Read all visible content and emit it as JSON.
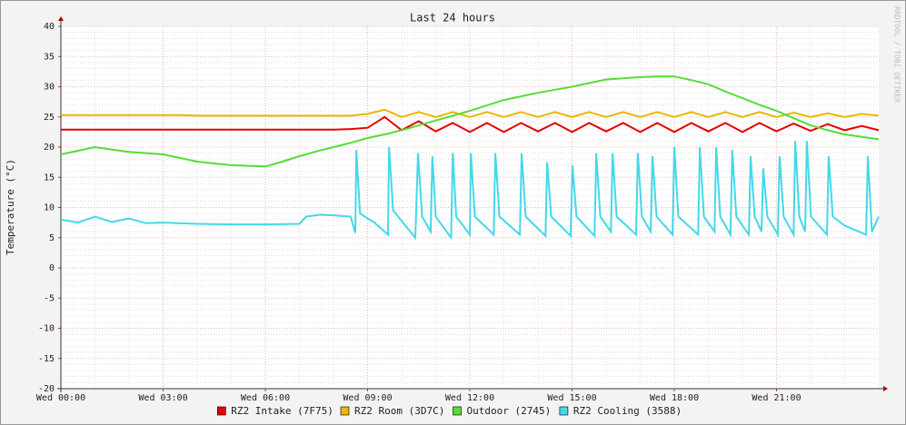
{
  "chart_data": {
    "type": "line",
    "title": "Last 24 hours",
    "ylabel": "Temperature (°C)",
    "watermark": "RRDTOOL / TOBI OETIKER",
    "xlim": [
      0,
      24
    ],
    "xticks": [
      {
        "value": 0,
        "label": "Wed 00:00"
      },
      {
        "value": 3,
        "label": "Wed 03:00"
      },
      {
        "value": 6,
        "label": "Wed 06:00"
      },
      {
        "value": 9,
        "label": "Wed 09:00"
      },
      {
        "value": 12,
        "label": "Wed 12:00"
      },
      {
        "value": 15,
        "label": "Wed 15:00"
      },
      {
        "value": 18,
        "label": "Wed 18:00"
      },
      {
        "value": 21,
        "label": "Wed 21:00"
      }
    ],
    "ylim": [
      -20,
      40
    ],
    "yticks": [
      -20,
      -15,
      -10,
      -5,
      0,
      5,
      10,
      15,
      20,
      25,
      30,
      35,
      40
    ],
    "grid": true,
    "x": [
      0,
      0.5,
      1,
      1.5,
      2,
      2.5,
      3,
      3.5,
      4,
      4.5,
      5,
      5.5,
      6,
      6.5,
      7,
      7.5,
      8,
      8.5,
      9,
      9.5,
      10,
      10.5,
      11,
      11.5,
      12,
      12.5,
      13,
      13.5,
      14,
      14.5,
      15,
      15.5,
      16,
      16.5,
      17,
      17.5,
      18,
      18.5,
      19,
      19.5,
      20,
      20.5,
      21,
      21.5,
      22,
      22.5,
      23,
      23.5,
      24
    ],
    "series": [
      {
        "name": "RZ2 Intake (7F75)",
        "color": "#e60000",
        "values": [
          22.9,
          22.9,
          22.9,
          22.9,
          22.9,
          22.9,
          22.9,
          22.9,
          22.9,
          22.9,
          22.9,
          22.9,
          22.9,
          22.9,
          22.9,
          22.9,
          22.9,
          23,
          23.2,
          25,
          22.8,
          24.3,
          22.6,
          24,
          22.5,
          24,
          22.5,
          24,
          22.6,
          24,
          22.5,
          24,
          22.6,
          24,
          22.5,
          24,
          22.5,
          24,
          22.6,
          24,
          22.5,
          24,
          22.6,
          23.9,
          22.7,
          23.8,
          22.8,
          23.5,
          22.8
        ]
      },
      {
        "name": "RZ2 Room (3D7C)",
        "color": "#e6b800",
        "values": [
          25.3,
          25.3,
          25.3,
          25.3,
          25.3,
          25.3,
          25.3,
          25.3,
          25.2,
          25.2,
          25.2,
          25.2,
          25.2,
          25.2,
          25.2,
          25.2,
          25.2,
          25.2,
          25.5,
          26.2,
          25,
          25.8,
          25,
          25.8,
          25,
          25.8,
          25,
          25.8,
          25,
          25.8,
          25,
          25.8,
          25,
          25.8,
          25,
          25.8,
          25,
          25.8,
          25,
          25.8,
          25,
          25.8,
          25,
          25.7,
          25,
          25.6,
          25,
          25.5,
          25.2
        ]
      },
      {
        "name": "Outdoor (2745)",
        "color": "#55dd33",
        "values": [
          18.8,
          19.4,
          20,
          19.6,
          19.2,
          19,
          18.8,
          18.2,
          17.6,
          17.3,
          17,
          16.9,
          16.8,
          17.6,
          18.5,
          19.3,
          20,
          20.7,
          21.5,
          22.1,
          22.8,
          23.6,
          24.4,
          25.2,
          26,
          26.9,
          27.8,
          28.4,
          29,
          29.5,
          30,
          30.6,
          31.2,
          31.4,
          31.6,
          31.7,
          31.7,
          31.1,
          30.4,
          29.2,
          28.1,
          27,
          26,
          24.8,
          23.6,
          22.8,
          22.1,
          21.7,
          21.3
        ]
      },
      {
        "name": "RZ2 Cooling (3588)",
        "color": "#44d8e8",
        "x": [
          0,
          0.5,
          1,
          1.5,
          2,
          2.5,
          3,
          4,
          5,
          6,
          7,
          7.2,
          7.6,
          8,
          8.5,
          8.64,
          8.67,
          8.78,
          9.2,
          9.6,
          9.63,
          9.75,
          10.4,
          10.48,
          10.6,
          10.85,
          10.9,
          11,
          11.45,
          11.5,
          11.6,
          12,
          12.03,
          12.15,
          12.7,
          12.75,
          12.87,
          13.47,
          13.52,
          13.64,
          14.22,
          14.27,
          14.39,
          14.96,
          15.01,
          15.13,
          15.66,
          15.71,
          15.83,
          16.14,
          16.19,
          16.31,
          16.88,
          16.93,
          17.05,
          17.31,
          17.36,
          17.48,
          17.95,
          18,
          18.12,
          18.7,
          18.75,
          18.87,
          19.18,
          19.23,
          19.35,
          19.65,
          19.7,
          19.82,
          20.19,
          20.24,
          20.36,
          20.56,
          20.61,
          20.73,
          21.04,
          21.09,
          21.21,
          21.5,
          21.55,
          21.67,
          21.84,
          21.89,
          22.01,
          22.48,
          22.53,
          22.65,
          23,
          23.63,
          23.68,
          23.8,
          24
        ],
        "values": [
          8,
          7.5,
          8.5,
          7.6,
          8.2,
          7.4,
          7.5,
          7.3,
          7.2,
          7.2,
          7.3,
          8.5,
          8.8,
          8.7,
          8.5,
          5.8,
          19.5,
          9,
          7.5,
          5.5,
          20,
          9.5,
          5,
          19,
          8.5,
          6,
          18.5,
          8.5,
          5,
          19,
          8.5,
          5.5,
          19,
          8.5,
          5.5,
          19,
          8.5,
          5.5,
          19,
          8.5,
          5.3,
          17.5,
          8.5,
          5.3,
          17,
          8.5,
          5.3,
          19,
          8.5,
          6,
          19,
          8.5,
          5.5,
          19,
          8.5,
          6,
          18.5,
          8.5,
          5.5,
          20,
          8.5,
          5.5,
          20,
          8.5,
          6,
          20,
          8.5,
          5.5,
          19.5,
          8.5,
          5.5,
          18.5,
          8.5,
          6,
          16.5,
          8.5,
          5.5,
          18.5,
          8.5,
          5.5,
          21,
          8.5,
          6,
          21,
          8.5,
          5.5,
          18.5,
          8.5,
          7,
          5.5,
          18.5,
          6,
          8.5
        ]
      }
    ]
  }
}
